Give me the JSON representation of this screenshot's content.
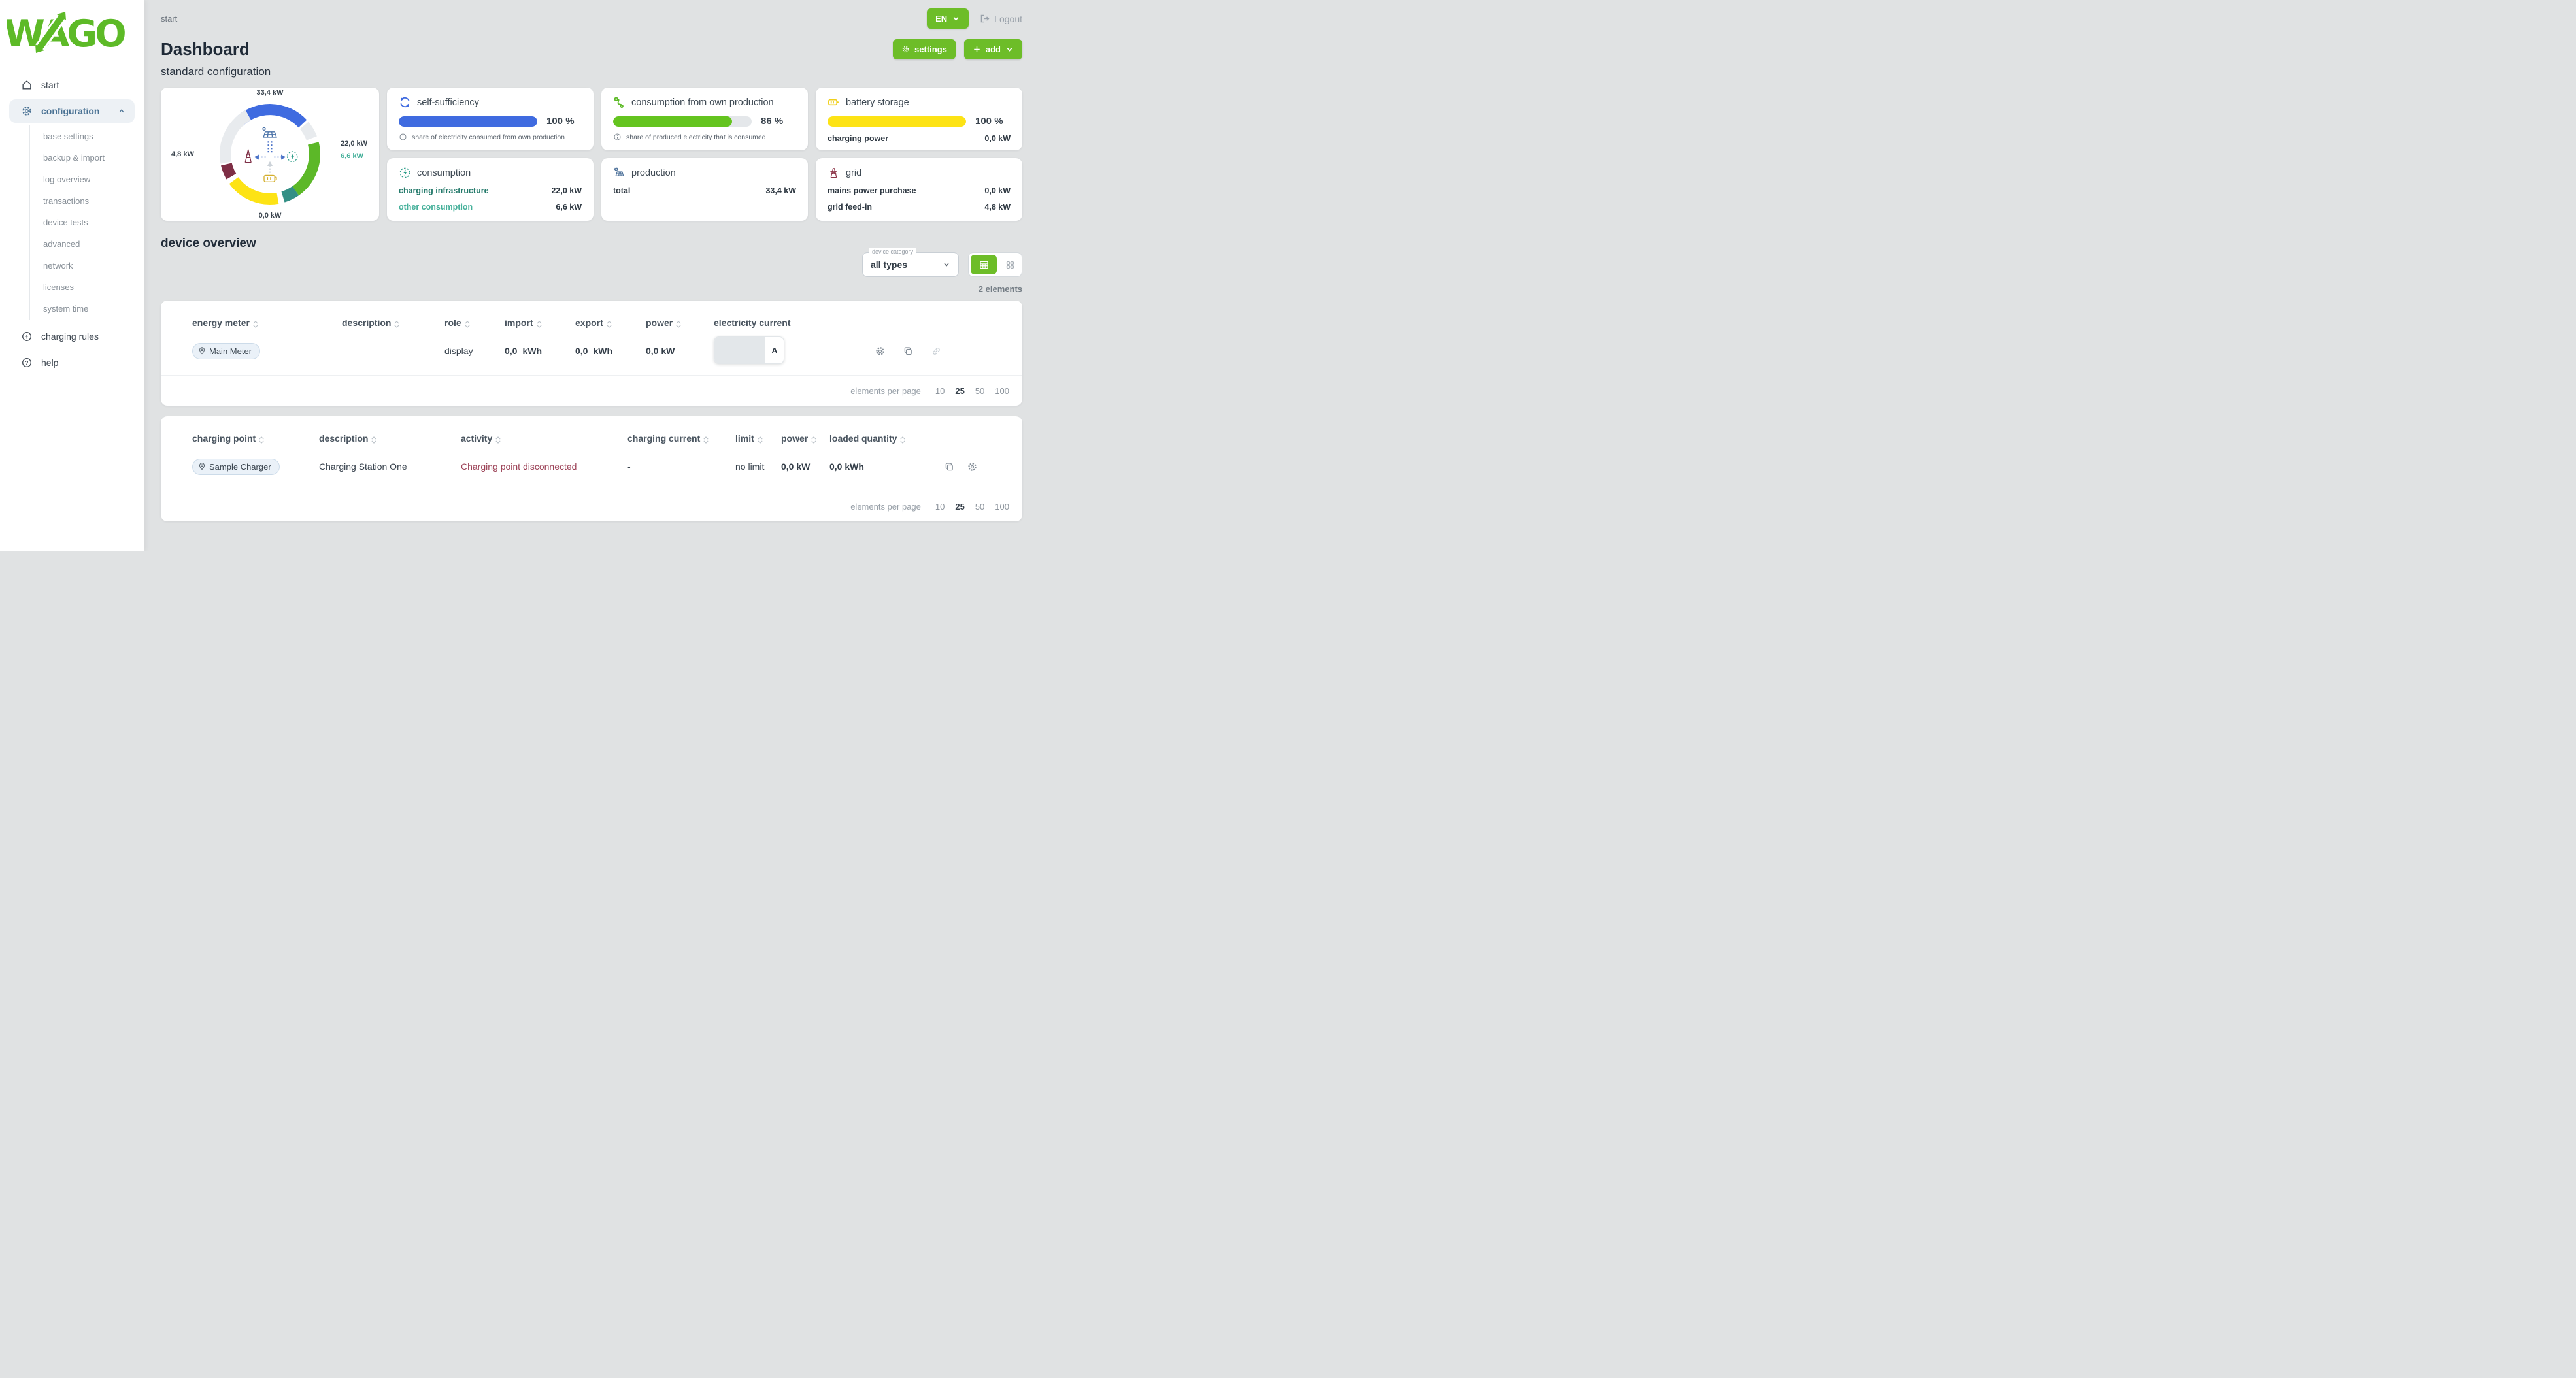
{
  "topbar": {
    "breadcrumb": "start",
    "language": "EN",
    "logout": "Logout"
  },
  "header": {
    "title": "Dashboard",
    "subtitle": "standard configuration",
    "settings": "settings",
    "add": "add"
  },
  "sidebar": {
    "start": "start",
    "configuration": "configuration",
    "charging_rules": "charging rules",
    "help": "help",
    "config_items": [
      "base settings",
      "backup & import",
      "log overview",
      "transactions",
      "device tests",
      "advanced",
      "network",
      "licenses",
      "system time"
    ]
  },
  "flow": {
    "production": "33,4 kW",
    "consumption": "22,0 kW",
    "other": "6,6 kW",
    "grid": "4,8 kW",
    "battery": "0,0 kW"
  },
  "cards": {
    "self": {
      "title": "self-sufficiency",
      "value": "100 %",
      "percent": 100,
      "hint": "share of electricity consumed from own production"
    },
    "ownprod": {
      "title": "consumption from own production",
      "value": "86 %",
      "percent": 86,
      "hint": "share of produced electricity that is consumed"
    },
    "battery": {
      "title": "battery storage",
      "value": "100 %",
      "percent": 100,
      "row_label": "charging power",
      "row_value": "0,0 kW"
    },
    "consumption": {
      "title": "consumption",
      "row1_label": "charging infrastructure",
      "row1_value": "22,0 kW",
      "row2_label": "other consumption",
      "row2_value": "6,6 kW"
    },
    "production": {
      "title": "production",
      "row1_label": "total",
      "row1_value": "33,4 kW"
    },
    "grid": {
      "title": "grid",
      "row1_label": "mains power purchase",
      "row1_value": "0,0 kW",
      "row2_label": "grid feed-in",
      "row2_value": "4,8 kW"
    }
  },
  "overview": {
    "title": "device overview",
    "filter_label": "device category",
    "filter_value": "all types",
    "count": "2 elements",
    "meters": {
      "col_name": "energy meter",
      "col_desc": "description",
      "col_role": "role",
      "col_import": "import",
      "col_export": "export",
      "col_power": "power",
      "col_current": "electricity current",
      "row": {
        "name": "Main Meter",
        "role": "display",
        "import_val": "0,0",
        "import_unit": "kWh",
        "export_val": "0,0",
        "export_unit": "kWh",
        "power": "0,0 kW",
        "phase": "A"
      }
    },
    "chargers": {
      "col_name": "charging point",
      "col_desc": "description",
      "col_activity": "activity",
      "col_current": "charging current",
      "col_limit": "limit",
      "col_power": "power",
      "col_loaded": "loaded quantity",
      "row": {
        "name": "Sample Charger",
        "desc": "Charging Station One",
        "activity": "Charging point disconnected",
        "current": "-",
        "limit": "no limit",
        "power": "0,0 kW",
        "loaded": "0,0 kWh"
      }
    },
    "pagination": {
      "label": "elements per page",
      "opts": [
        "10",
        "25",
        "50",
        "100"
      ],
      "selected": "25"
    }
  },
  "colors": {
    "brand_green": "#6dbd28",
    "blue": "#3f6be0",
    "bar_green": "#64c41f",
    "yellow": "#fde315",
    "teal": "#338f85",
    "maroon": "#7e2e45",
    "error_text": "#9c4257"
  },
  "chart_data": {
    "type": "pie",
    "title": "energy flow (kW)",
    "legend_position": "around-ring",
    "series": [
      {
        "name": "production",
        "value": 33.4,
        "color": "#3f6be0"
      },
      {
        "name": "consumption charging infrastructure",
        "value": 22.0,
        "color": "#5cb828"
      },
      {
        "name": "other consumption",
        "value": 6.6,
        "color": "#338f85"
      },
      {
        "name": "grid feed-in",
        "value": 4.8,
        "color": "#7e2e45"
      },
      {
        "name": "battery charging",
        "value": 0.0,
        "color": "#fde315"
      }
    ],
    "gauges": [
      {
        "name": "self-sufficiency",
        "value": 100,
        "max": 100
      },
      {
        "name": "consumption from own production",
        "value": 86,
        "max": 100
      },
      {
        "name": "battery storage state of charge",
        "value": 100,
        "max": 100
      }
    ]
  }
}
